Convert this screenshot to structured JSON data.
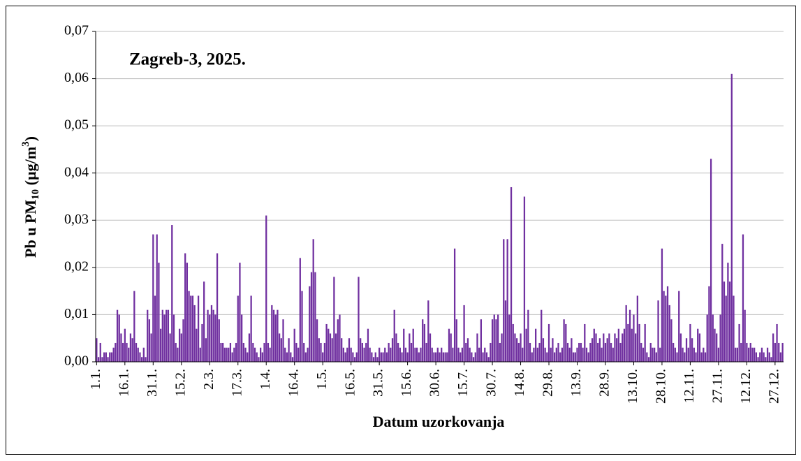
{
  "chart_data": {
    "type": "bar",
    "title": "Zagreb-3, 2025.",
    "x_label": "Datum uzorkovanja",
    "y_label": [
      "Pb u PM",
      "10",
      " (µg/m",
      "3",
      ")"
    ],
    "color": "#7030a0",
    "grid": true,
    "ylim": [
      0,
      0.07
    ],
    "yticks": [
      {
        "value": 0,
        "label": "0,00"
      },
      {
        "value": 0.01,
        "label": "0,01"
      },
      {
        "value": 0.02,
        "label": "0,02"
      },
      {
        "value": 0.03,
        "label": "0,03"
      },
      {
        "value": 0.04,
        "label": "0,04"
      },
      {
        "value": 0.05,
        "label": "0,05"
      },
      {
        "value": 0.06,
        "label": "0,06"
      },
      {
        "value": 0.07,
        "label": "0,07"
      }
    ],
    "categories": [
      "1.1.",
      null,
      null,
      null,
      null,
      null,
      null,
      null,
      null,
      null,
      null,
      null,
      null,
      null,
      null,
      "16.1.",
      null,
      null,
      null,
      null,
      null,
      null,
      null,
      null,
      null,
      null,
      null,
      null,
      null,
      null,
      "31.1.",
      null,
      null,
      null,
      null,
      null,
      null,
      null,
      null,
      null,
      null,
      null,
      null,
      null,
      null,
      "15.2.",
      null,
      null,
      null,
      null,
      null,
      null,
      null,
      null,
      null,
      null,
      null,
      null,
      null,
      null,
      "2.3.",
      null,
      null,
      null,
      null,
      null,
      null,
      null,
      null,
      null,
      null,
      null,
      null,
      null,
      null,
      "17.3.",
      null,
      null,
      null,
      null,
      null,
      null,
      null,
      null,
      null,
      null,
      null,
      null,
      null,
      null,
      "1.4.",
      null,
      null,
      null,
      null,
      null,
      null,
      null,
      null,
      null,
      null,
      null,
      null,
      null,
      null,
      "16.4.",
      null,
      null,
      null,
      null,
      null,
      null,
      null,
      null,
      null,
      null,
      null,
      null,
      null,
      null,
      "1.5.",
      null,
      null,
      null,
      null,
      null,
      null,
      null,
      null,
      null,
      null,
      null,
      null,
      null,
      null,
      "16.5.",
      null,
      null,
      null,
      null,
      null,
      null,
      null,
      null,
      null,
      null,
      null,
      null,
      null,
      null,
      "31.5.",
      null,
      null,
      null,
      null,
      null,
      null,
      null,
      null,
      null,
      null,
      null,
      null,
      null,
      null,
      "15.6.",
      null,
      null,
      null,
      null,
      null,
      null,
      null,
      null,
      null,
      null,
      null,
      null,
      null,
      null,
      "30.6.",
      null,
      null,
      null,
      null,
      null,
      null,
      null,
      null,
      null,
      null,
      null,
      null,
      null,
      null,
      "15.7.",
      null,
      null,
      null,
      null,
      null,
      null,
      null,
      null,
      null,
      null,
      null,
      null,
      null,
      null,
      "30.7.",
      null,
      null,
      null,
      null,
      null,
      null,
      null,
      null,
      null,
      null,
      null,
      null,
      null,
      null,
      "14.8.",
      null,
      null,
      null,
      null,
      null,
      null,
      null,
      null,
      null,
      null,
      null,
      null,
      null,
      null,
      "29.8.",
      null,
      null,
      null,
      null,
      null,
      null,
      null,
      null,
      null,
      null,
      null,
      null,
      null,
      null,
      "13.9.",
      null,
      null,
      null,
      null,
      null,
      null,
      null,
      null,
      null,
      null,
      null,
      null,
      null,
      null,
      "28.9.",
      null,
      null,
      null,
      null,
      null,
      null,
      null,
      null,
      null,
      null,
      null,
      null,
      null,
      null,
      "13.10.",
      null,
      null,
      null,
      null,
      null,
      null,
      null,
      null,
      null,
      null,
      null,
      null,
      null,
      null,
      "28.10.",
      null,
      null,
      null,
      null,
      null,
      null,
      null,
      null,
      null,
      null,
      null,
      null,
      null,
      null,
      "12.11.",
      null,
      null,
      null,
      null,
      null,
      null,
      null,
      null,
      null,
      null,
      null,
      null,
      null,
      null,
      "27.11.",
      null,
      null,
      null,
      null,
      null,
      null,
      null,
      null,
      null,
      null,
      null,
      null,
      null,
      null,
      "12.12.",
      null,
      null,
      null,
      null,
      null,
      null,
      null,
      null,
      null,
      null,
      null,
      null,
      null,
      null,
      "27.12.",
      null,
      null,
      null,
      null
    ],
    "values": [
      0.005,
      0.001,
      0.004,
      0.001,
      0.002,
      0.002,
      0.001,
      0.002,
      0.002,
      0.003,
      0.004,
      0.011,
      0.01,
      0.006,
      0.004,
      0.007,
      0.004,
      0.003,
      0.006,
      0.005,
      0.015,
      0.004,
      0.003,
      0.002,
      0.001,
      0.003,
      0.001,
      0.011,
      0.009,
      0.006,
      0.027,
      0.014,
      0.027,
      0.021,
      0.007,
      0.011,
      0.01,
      0.011,
      0.011,
      0.006,
      0.029,
      0.01,
      0.004,
      0.003,
      0.007,
      0.006,
      0.009,
      0.023,
      0.021,
      0.015,
      0.014,
      0.014,
      0.012,
      0.007,
      0.014,
      0.003,
      0.008,
      0.017,
      0.005,
      0.011,
      0.01,
      0.012,
      0.011,
      0.01,
      0.023,
      0.009,
      0.004,
      0.004,
      0.003,
      0.003,
      0.003,
      0.004,
      0.002,
      0.003,
      0.004,
      0.014,
      0.021,
      0.01,
      0.004,
      0.003,
      0.002,
      0.006,
      0.014,
      0.004,
      0.003,
      0.002,
      0.001,
      0.003,
      0.002,
      0.004,
      0.031,
      0.004,
      0.003,
      0.012,
      0.011,
      0.01,
      0.011,
      0.006,
      0.005,
      0.009,
      0.003,
      0.002,
      0.005,
      0.002,
      0.001,
      0.007,
      0.004,
      0.003,
      0.022,
      0.015,
      0.004,
      0.002,
      0.003,
      0.016,
      0.019,
      0.026,
      0.019,
      0.009,
      0.005,
      0.004,
      0.002,
      0.004,
      0.008,
      0.007,
      0.006,
      0.005,
      0.018,
      0.006,
      0.009,
      0.01,
      0.005,
      0.003,
      0.002,
      0.003,
      0.005,
      0.003,
      0.002,
      0.001,
      0.002,
      0.018,
      0.005,
      0.004,
      0.003,
      0.004,
      0.007,
      0.003,
      0.002,
      0.001,
      0.002,
      0.001,
      0.003,
      0.002,
      0.002,
      0.003,
      0.002,
      0.004,
      0.003,
      0.005,
      0.011,
      0.006,
      0.004,
      0.003,
      0.002,
      0.007,
      0.003,
      0.002,
      0.006,
      0.004,
      0.007,
      0.003,
      0.003,
      0.002,
      0.003,
      0.009,
      0.008,
      0.004,
      0.013,
      0.006,
      0.003,
      0.002,
      0.002,
      0.003,
      0.002,
      0.003,
      0.002,
      0.002,
      0.002,
      0.007,
      0.006,
      0.003,
      0.024,
      0.009,
      0.003,
      0.002,
      0.003,
      0.012,
      0.004,
      0.005,
      0.003,
      0.002,
      0.001,
      0.002,
      0.006,
      0.003,
      0.009,
      0.002,
      0.003,
      0.002,
      0.001,
      0.004,
      0.009,
      0.01,
      0.009,
      0.01,
      0.004,
      0.006,
      0.026,
      0.013,
      0.026,
      0.01,
      0.037,
      0.008,
      0.006,
      0.005,
      0.004,
      0.006,
      0.003,
      0.035,
      0.007,
      0.011,
      0.004,
      0.002,
      0.003,
      0.007,
      0.003,
      0.004,
      0.011,
      0.005,
      0.003,
      0.002,
      0.008,
      0.003,
      0.005,
      0.002,
      0.003,
      0.004,
      0.002,
      0.003,
      0.009,
      0.008,
      0.004,
      0.003,
      0.005,
      0.002,
      0.002,
      0.003,
      0.004,
      0.004,
      0.003,
      0.008,
      0.003,
      0.002,
      0.004,
      0.005,
      0.007,
      0.006,
      0.004,
      0.005,
      0.003,
      0.006,
      0.004,
      0.005,
      0.006,
      0.004,
      0.003,
      0.006,
      0.005,
      0.007,
      0.004,
      0.006,
      0.007,
      0.012,
      0.008,
      0.011,
      0.007,
      0.01,
      0.006,
      0.014,
      0.008,
      0.004,
      0.003,
      0.008,
      0.002,
      0.001,
      0.004,
      0.003,
      0.003,
      0.002,
      0.013,
      0.003,
      0.024,
      0.015,
      0.014,
      0.016,
      0.012,
      0.009,
      0.004,
      0.003,
      0.002,
      0.015,
      0.006,
      0.003,
      0.002,
      0.005,
      0.003,
      0.008,
      0.005,
      0.003,
      0.002,
      0.007,
      0.006,
      0.002,
      0.003,
      0.002,
      0.01,
      0.016,
      0.043,
      0.01,
      0.007,
      0.006,
      0.003,
      0.01,
      0.025,
      0.017,
      0.014,
      0.021,
      0.017,
      0.061,
      0.014,
      0.003,
      0.003,
      0.008,
      0.004,
      0.027,
      0.011,
      0.004,
      0.003,
      0.004,
      0.003,
      0.003,
      0.002,
      0.001,
      0.002,
      0.003,
      0.002,
      0.001,
      0.003,
      0.002,
      0.001,
      0.006,
      0.004,
      0.008,
      0.004,
      0.002,
      0.004
    ]
  }
}
